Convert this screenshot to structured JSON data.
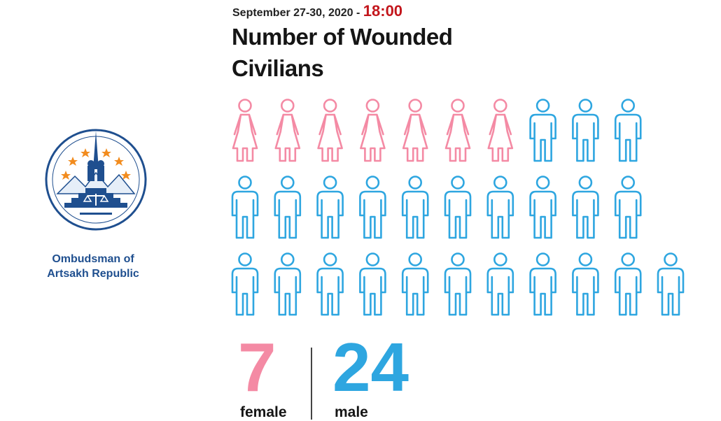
{
  "organization": {
    "name_line1": "Ombudsman of",
    "name_line2": "Artsakh Republic"
  },
  "header": {
    "date": "September 27-30, 2020 - ",
    "time": "18:00",
    "title": "Number of Wounded Civilians"
  },
  "chart_data": {
    "type": "pictogram",
    "title": "Number of Wounded Civilians",
    "subtitle": "September 27-30, 2020 - 18:00",
    "categories": [
      "female",
      "male"
    ],
    "values": [
      7,
      24
    ],
    "total": 31,
    "icons_per_row": [
      10,
      10,
      11
    ],
    "colors": {
      "female": "#f48aa4",
      "male": "#2ea6e0"
    }
  },
  "summary": {
    "female_count": "7",
    "female_label": "female",
    "male_count": "24",
    "male_label": "male"
  },
  "colors": {
    "female": "#f48aa4",
    "male": "#2ea6e0",
    "logo_blue": "#1f4f8f",
    "time_red": "#c3161c"
  },
  "icons": {
    "logo": "ombudsman-emblem-icon",
    "female": "female-person-icon",
    "male": "male-person-icon"
  }
}
